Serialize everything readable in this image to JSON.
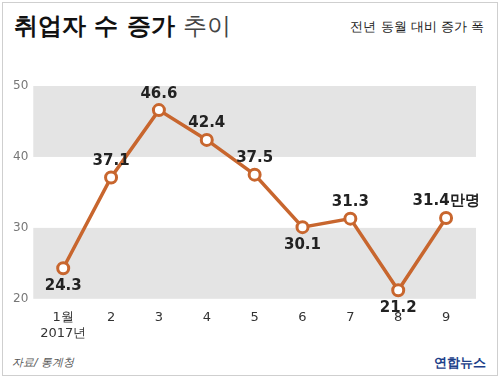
{
  "chart_data": {
    "type": "line",
    "title": "취업자 수 증가 추이",
    "subtitle": "전년 동월 대비 증가 폭",
    "source": "자료/ 통계청",
    "credit": "연합뉴스",
    "categories": [
      "1월\n2017년",
      "2",
      "3",
      "4",
      "5",
      "6",
      "7",
      "8",
      "9"
    ],
    "values": [
      24.3,
      37.1,
      46.6,
      42.4,
      37.5,
      30.1,
      31.3,
      21.2,
      31.4
    ],
    "value_labels": [
      "24.3",
      "37.1",
      "46.6",
      "42.4",
      "37.5",
      "30.1",
      "31.3",
      "21.2",
      "31.4만명"
    ],
    "color": "#c8662e",
    "marker": "circle",
    "ylim": [
      20,
      50
    ],
    "yticks": [
      20,
      30,
      40,
      50
    ],
    "grid": true,
    "data_labels": true
  }
}
